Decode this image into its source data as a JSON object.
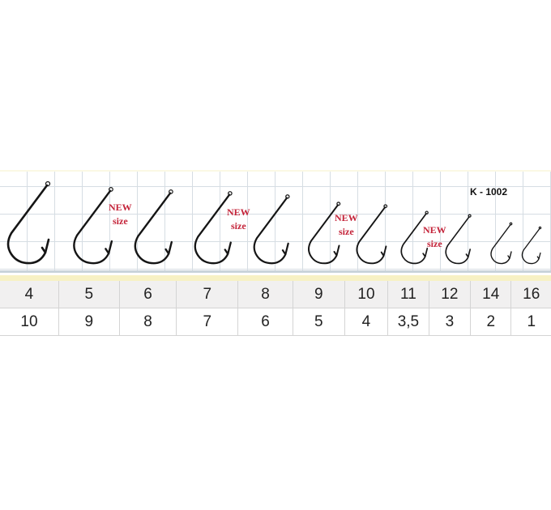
{
  "model": "K - 1002",
  "new_size_label": {
    "line1": "NEW",
    "line2": "size"
  },
  "hook_sizes": [
    "4",
    "5",
    "6",
    "7",
    "8",
    "9",
    "10",
    "11",
    "12",
    "14",
    "16"
  ],
  "second_row": [
    "10",
    "9",
    "8",
    "7",
    "6",
    "5",
    "4",
    "3,5",
    "3",
    "2",
    "1"
  ],
  "colors": {
    "new_label": "#c4243a",
    "band": "#f7f1c4",
    "grid": "#d6dde3"
  }
}
